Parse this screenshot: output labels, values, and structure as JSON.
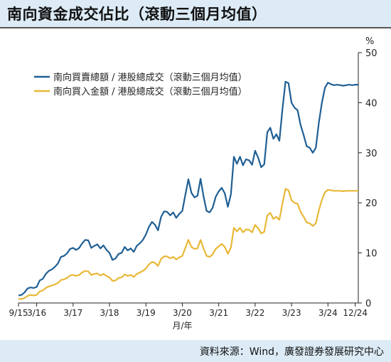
{
  "title": "南向資金成交佔比（滾動三個月均值）",
  "source": "資料來源：Wind，廣發證券發展研究中心",
  "chart_data": {
    "type": "line",
    "title": "南向資金成交佔比（滾動三個月均值）",
    "xlabel": "月/年",
    "ylabel": "%",
    "ylim": [
      0,
      50
    ],
    "yticks": [
      0,
      10,
      20,
      30,
      40,
      50
    ],
    "xticks": [
      "9/15",
      "3/16",
      "3/17",
      "3/18",
      "3/19",
      "3/20",
      "3/21",
      "3/22",
      "3/23",
      "3/24",
      "12/24"
    ],
    "legend_position": "top-left",
    "grid": false,
    "x": [
      "2015-09",
      "2015-10",
      "2015-11",
      "2015-12",
      "2016-01",
      "2016-02",
      "2016-03",
      "2016-04",
      "2016-05",
      "2016-06",
      "2016-07",
      "2016-08",
      "2016-09",
      "2016-10",
      "2016-11",
      "2016-12",
      "2017-01",
      "2017-02",
      "2017-03",
      "2017-04",
      "2017-05",
      "2017-06",
      "2017-07",
      "2017-08",
      "2017-09",
      "2017-10",
      "2017-11",
      "2017-12",
      "2018-01",
      "2018-02",
      "2018-03",
      "2018-04",
      "2018-05",
      "2018-06",
      "2018-07",
      "2018-08",
      "2018-09",
      "2018-10",
      "2018-11",
      "2018-12",
      "2019-01",
      "2019-02",
      "2019-03",
      "2019-04",
      "2019-05",
      "2019-06",
      "2019-07",
      "2019-08",
      "2019-09",
      "2019-10",
      "2019-11",
      "2019-12",
      "2020-01",
      "2020-02",
      "2020-03",
      "2020-04",
      "2020-05",
      "2020-06",
      "2020-07",
      "2020-08",
      "2020-09",
      "2020-10",
      "2020-11",
      "2020-12",
      "2021-01",
      "2021-02",
      "2021-03",
      "2021-04",
      "2021-05",
      "2021-06",
      "2021-07",
      "2021-08",
      "2021-09",
      "2021-10",
      "2021-11",
      "2021-12",
      "2022-01",
      "2022-02",
      "2022-03",
      "2022-04",
      "2022-05",
      "2022-06",
      "2022-07",
      "2022-08",
      "2022-09",
      "2022-10",
      "2022-11",
      "2022-12",
      "2023-01",
      "2023-02",
      "2023-03",
      "2023-04",
      "2023-05",
      "2023-06",
      "2023-07",
      "2023-08",
      "2023-09",
      "2023-10",
      "2023-11",
      "2023-12",
      "2024-01",
      "2024-02",
      "2024-03",
      "2024-04",
      "2024-05",
      "2024-06",
      "2024-07",
      "2024-08",
      "2024-09",
      "2024-10",
      "2024-11",
      "2024-12",
      "2025-01"
    ],
    "series": [
      {
        "name": "南向買賣總額 / 港股總成交（滾動三個月均值）",
        "color": "#1f5f94",
        "values": [
          1.5,
          1.6,
          2.1,
          2.9,
          3.1,
          3.0,
          3.2,
          4.5,
          4.8,
          5.8,
          6.4,
          6.7,
          7.2,
          7.9,
          9.2,
          9.4,
          9.9,
          10.8,
          11.0,
          10.6,
          11.0,
          11.9,
          12.6,
          12.5,
          11.0,
          11.4,
          11.7,
          10.9,
          11.5,
          10.6,
          10.0,
          8.6,
          8.9,
          9.8,
          10.0,
          11.2,
          10.5,
          10.9,
          10.2,
          11.4,
          11.9,
          12.6,
          13.7,
          15.2,
          16.2,
          15.6,
          14.5,
          17.2,
          18.3,
          18.2,
          17.5,
          18.1,
          17.0,
          17.8,
          18.4,
          21.6,
          24.7,
          22.0,
          21.1,
          21.4,
          24.8,
          21.3,
          18.4,
          18.1,
          19.0,
          21.2,
          22.3,
          23.0,
          21.9,
          19.2,
          21.7,
          29.2,
          27.8,
          29.2,
          27.5,
          28.7,
          28.5,
          27.6,
          30.4,
          29.0,
          27.1,
          27.7,
          34.1,
          35.0,
          32.8,
          33.7,
          32.4,
          38.7,
          44.2,
          43.9,
          40.0,
          39.0,
          38.5,
          35.5,
          33.5,
          31.3,
          31.0,
          30.0,
          31.0,
          36.0,
          40.0,
          43.0,
          44.0,
          43.7,
          43.5,
          43.6,
          43.5,
          43.4,
          43.5,
          43.6,
          43.5,
          43.6,
          43.6
        ]
      },
      {
        "name": "南向買入金額 / 港股總成交（滾動三個月均值）",
        "color": "#e8b836",
        "values": [
          0.8,
          0.8,
          1.0,
          1.4,
          1.6,
          1.5,
          1.6,
          2.3,
          2.5,
          3.0,
          3.3,
          3.5,
          3.7,
          4.0,
          4.6,
          4.7,
          5.0,
          5.5,
          5.6,
          5.4,
          5.6,
          6.1,
          6.4,
          6.3,
          5.6,
          5.8,
          5.9,
          5.5,
          5.8,
          5.4,
          5.1,
          4.4,
          4.5,
          5.0,
          5.1,
          5.7,
          5.4,
          5.6,
          5.2,
          5.8,
          6.1,
          6.4,
          6.9,
          7.7,
          8.2,
          8.0,
          7.4,
          8.8,
          9.3,
          9.3,
          8.9,
          9.2,
          8.7,
          9.1,
          9.4,
          11.0,
          12.6,
          11.2,
          10.8,
          10.9,
          12.6,
          10.9,
          9.4,
          9.2,
          9.7,
          10.8,
          11.3,
          11.8,
          11.2,
          9.8,
          11.1,
          15.0,
          14.3,
          15.0,
          14.1,
          14.7,
          14.6,
          14.1,
          15.6,
          14.9,
          13.9,
          14.2,
          17.5,
          18.0,
          16.8,
          17.2,
          16.6,
          19.9,
          22.8,
          22.5,
          20.5,
          20.0,
          19.8,
          18.2,
          17.2,
          16.1,
          15.9,
          15.4,
          15.9,
          18.5,
          20.6,
          22.1,
          22.6,
          22.5,
          22.4,
          22.4,
          22.4,
          22.3,
          22.4,
          22.4,
          22.4,
          22.4,
          22.4
        ]
      }
    ]
  }
}
